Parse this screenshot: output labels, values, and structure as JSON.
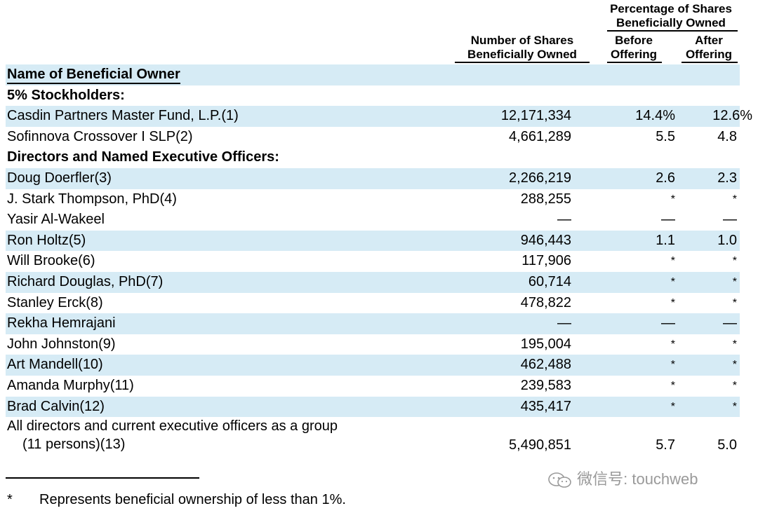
{
  "headers": {
    "pct_group_line1": "Percentage of Shares",
    "pct_group_line2": "Beneficially Owned",
    "shares_line1": "Number of Shares",
    "shares_line2": "Beneficially Owned",
    "before_line1": "Before",
    "before_line2": "Offering",
    "after_line1": "After",
    "after_line2": "Offering",
    "owner": "Name of Beneficial Owner"
  },
  "sections": {
    "five_pct": "5%  Stockholders:",
    "directors": "Directors and Named Executive Officers:"
  },
  "rows": [
    {
      "name": "Casdin Partners Master Fund, L.P.(1)",
      "shares": "12,171,334",
      "before": "14.4%",
      "after": "12.6%"
    },
    {
      "name": "Sofinnova Crossover I SLP(2)",
      "shares": "4,661,289",
      "before": "5.5",
      "after": "4.8"
    },
    {
      "name": "Doug Doerfler(3)",
      "shares": "2,266,219",
      "before": "2.6",
      "after": "2.3"
    },
    {
      "name": "J. Stark Thompson, PhD(4)",
      "shares": "288,255",
      "before": "*",
      "after": "*"
    },
    {
      "name": "Yasir Al-Wakeel",
      "shares": "—",
      "before": "—",
      "after": "—"
    },
    {
      "name": "Ron Holtz(5)",
      "shares": "946,443",
      "before": "1.1",
      "after": "1.0"
    },
    {
      "name": "Will Brooke(6)",
      "shares": "117,906",
      "before": "*",
      "after": "*"
    },
    {
      "name": "Richard Douglas, PhD(7)",
      "shares": "60,714",
      "before": "*",
      "after": "*"
    },
    {
      "name": "Stanley Erck(8)",
      "shares": "478,822",
      "before": "*",
      "after": "*"
    },
    {
      "name": "Rekha Hemrajani",
      "shares": "—",
      "before": "—",
      "after": "—"
    },
    {
      "name": "John Johnston(9)",
      "shares": "195,004",
      "before": "*",
      "after": "*"
    },
    {
      "name": "Art Mandell(10)",
      "shares": "462,488",
      "before": "*",
      "after": "*"
    },
    {
      "name": "Amanda Murphy(11)",
      "shares": "239,583",
      "before": "*",
      "after": "*"
    },
    {
      "name": "Brad Calvin(12)",
      "shares": "435,417",
      "before": "*",
      "after": "*"
    }
  ],
  "group_row": {
    "name_line1": "All directors and current executive officers as a group",
    "name_line2": "(11 persons)(13)",
    "shares": "5,490,851",
    "before": "5.7",
    "after": "5.0"
  },
  "footnote": {
    "symbol": "*",
    "text": "Represents beneficial ownership of less than 1%."
  },
  "watermark": "微信号: touchweb",
  "colors": {
    "row_shade": "#d6ebf5"
  }
}
